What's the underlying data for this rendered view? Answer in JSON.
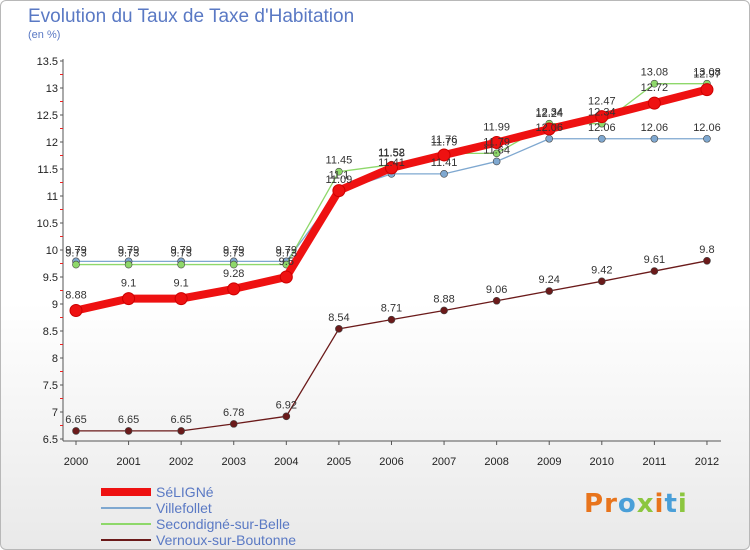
{
  "header": {
    "title": "Evolution du Taux de Taxe d'Habitation",
    "subtitle": "(en %)"
  },
  "brand": {
    "text": "Proxiti",
    "letter_colors": [
      "#e8741c",
      "#e8741c",
      "#4a9fd8",
      "#8cc63f",
      "#e8741c",
      "#4a9fd8",
      "#8cc63f"
    ]
  },
  "chart_data": {
    "type": "line",
    "title": "Evolution du Taux de Taxe d'Habitation",
    "ylabel": "(en %)",
    "xlabel": "",
    "x": [
      "2000",
      "2001",
      "2002",
      "2003",
      "2004",
      "2005",
      "2006",
      "2007",
      "2008",
      "2009",
      "2010",
      "2011",
      "2012"
    ],
    "ylim": [
      6.5,
      13.5
    ],
    "yticks": [
      "6.5",
      "7",
      "7.5",
      "8",
      "8.5",
      "9",
      "9.5",
      "10",
      "10.5",
      "11",
      "11.5",
      "12",
      "12.5",
      "13",
      "13.5"
    ],
    "grid": false,
    "legend_position": "bottom-left",
    "series": [
      {
        "name": "Vernoux-sur-Boutonne",
        "color": "#6b1a1a",
        "values": [
          6.65,
          6.65,
          6.65,
          6.78,
          6.92,
          8.54,
          8.71,
          8.88,
          9.06,
          9.24,
          9.42,
          9.61,
          9.8
        ],
        "labels": [
          "6.65",
          "6.65",
          "6.65",
          "6.78",
          "6.92",
          "8.54",
          "8.71",
          "8.88",
          "9.06",
          "9.24",
          "9.42",
          "9.61",
          "9.8"
        ]
      },
      {
        "name": "Villefollet",
        "color": "#7fa8d0",
        "values": [
          9.79,
          9.79,
          9.79,
          9.79,
          9.79,
          11.09,
          11.41,
          11.41,
          11.64,
          12.06,
          12.06,
          12.06,
          12.06
        ],
        "labels": [
          "9.79",
          "9.79",
          "9.79",
          "9.79",
          "9.79",
          "11.09",
          "11.41",
          "11.41",
          "11.64",
          "12.06",
          "12.06",
          "12.06",
          "12.06"
        ]
      },
      {
        "name": "Secondigné-sur-Belle",
        "color": "#8ed86a",
        "values": [
          9.73,
          9.73,
          9.73,
          9.73,
          9.73,
          11.45,
          11.58,
          11.79,
          11.79,
          12.34,
          12.34,
          13.08,
          13.08
        ],
        "labels": [
          "9.73",
          "9.73",
          "9.73",
          "9.73",
          "9.73",
          "11.45",
          "11.58",
          "11.79",
          "11.79",
          "12.34",
          "12.34",
          "13.08",
          "13.08"
        ]
      },
      {
        "name": "SéLIGNé",
        "color": "#ee1111",
        "values": [
          8.88,
          9.1,
          9.1,
          9.28,
          9.5,
          11.1,
          11.52,
          11.76,
          11.99,
          12.24,
          12.47,
          12.72,
          12.97
        ],
        "labels": [
          "8.88",
          "9.1",
          "9.1",
          "9.28",
          "9.5",
          "11.1",
          "11.52",
          "11.76",
          "11.99",
          "12.24",
          "12.47",
          "12.72",
          "12.97"
        ]
      }
    ],
    "legend": [
      "SéLIGNé",
      "Villefollet",
      "Secondigné-sur-Belle",
      "Vernoux-sur-Boutonne"
    ]
  }
}
